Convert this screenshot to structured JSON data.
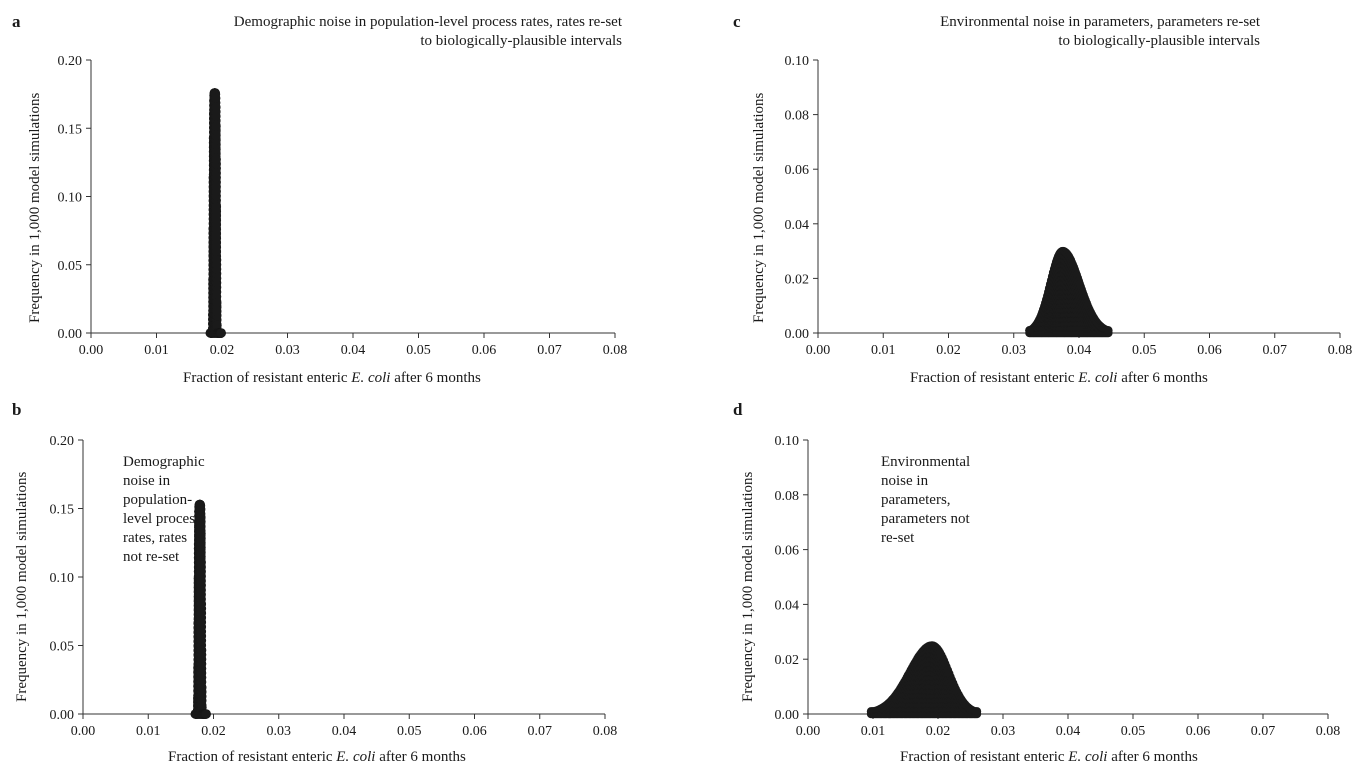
{
  "panels": [
    {
      "letter": "a",
      "title_line1": "Demographic noise in population-level process rates, rates re-set",
      "title_line2": "to biologically-plausible intervals"
    },
    {
      "letter": "b",
      "title_line1": "Demographic noise in population-level process rates, rates not re-set",
      "title_line2": ""
    },
    {
      "letter": "c",
      "title_line1": "Environmental noise in parameters, parameters re-set",
      "title_line2": "to biologically-plausible intervals"
    },
    {
      "letter": "d",
      "title_line1": "Environmental noise in parameters, parameters not re-set",
      "title_line2": ""
    }
  ],
  "chart_data": [
    {
      "type": "scatter",
      "title": "Demographic noise in population-level process rates, rates re-set to biologically-plausible intervals",
      "xlabel": "Fraction of resistant enteric E. coli after 6 months",
      "ylabel": "Frequency in 1,000 model simulations",
      "xlim": [
        0,
        0.08
      ],
      "ylim": [
        0,
        0.2
      ],
      "xticks": [
        "0.00",
        "0.01",
        "0.02",
        "0.03",
        "0.04",
        "0.05",
        "0.06",
        "0.07",
        "0.08"
      ],
      "yticks": [
        "0.00",
        "0.05",
        "0.10",
        "0.15",
        "0.20"
      ],
      "grid": false,
      "distribution": {
        "min": 0.0182,
        "max": 0.0199,
        "mode": 0.0189,
        "peak": 0.176,
        "shape": "narrow"
      }
    },
    {
      "type": "scatter",
      "title": "Demographic noise in population-level process rates, rates not re-set",
      "xlabel": "Fraction of resistant enteric E. coli after 6 months",
      "ylabel": "Frequency in 1,000 model simulations",
      "xlim": [
        0,
        0.08
      ],
      "ylim": [
        0,
        0.2
      ],
      "xticks": [
        "0.00",
        "0.01",
        "0.02",
        "0.03",
        "0.04",
        "0.05",
        "0.06",
        "0.07",
        "0.08"
      ],
      "yticks": [
        "0.00",
        "0.05",
        "0.10",
        "0.15",
        "0.20"
      ],
      "grid": false,
      "distribution": {
        "min": 0.0172,
        "max": 0.0189,
        "mode": 0.0179,
        "peak": 0.153,
        "shape": "narrow"
      }
    },
    {
      "type": "scatter",
      "title": "Environmental noise in parameters, parameters re-set to biologically-plausible intervals",
      "xlabel": "Fraction of resistant enteric E. coli after 6 months",
      "ylabel": "Frequency in 1,000 model simulations",
      "xlim": [
        0,
        0.08
      ],
      "ylim": [
        0,
        0.1
      ],
      "xticks": [
        "0.00",
        "0.01",
        "0.02",
        "0.03",
        "0.04",
        "0.05",
        "0.06",
        "0.07",
        "0.08"
      ],
      "yticks": [
        "0.00",
        "0.02",
        "0.04",
        "0.06",
        "0.08",
        "0.10"
      ],
      "grid": false,
      "distribution": {
        "min": 0.0324,
        "max": 0.0445,
        "mode": 0.0375,
        "peak": 0.03,
        "shape": "bell",
        "outliers": [
          [
            0.0324,
            0.001
          ]
        ]
      }
    },
    {
      "type": "scatter",
      "title": "Environmental noise in parameters, parameters not re-set",
      "xlabel": "Fraction of resistant enteric E. coli after 6 months",
      "ylabel": "Frequency in 1,000 model simulations",
      "xlim": [
        0,
        0.08
      ],
      "ylim": [
        0,
        0.1
      ],
      "xticks": [
        "0.00",
        "0.01",
        "0.02",
        "0.03",
        "0.04",
        "0.05",
        "0.06",
        "0.07",
        "0.08"
      ],
      "yticks": [
        "0.00",
        "0.02",
        "0.04",
        "0.06",
        "0.08",
        "0.10"
      ],
      "grid": false,
      "distribution": {
        "min": 0.0097,
        "max": 0.026,
        "mode": 0.0191,
        "peak": 0.025,
        "shape": "bell"
      }
    }
  ]
}
